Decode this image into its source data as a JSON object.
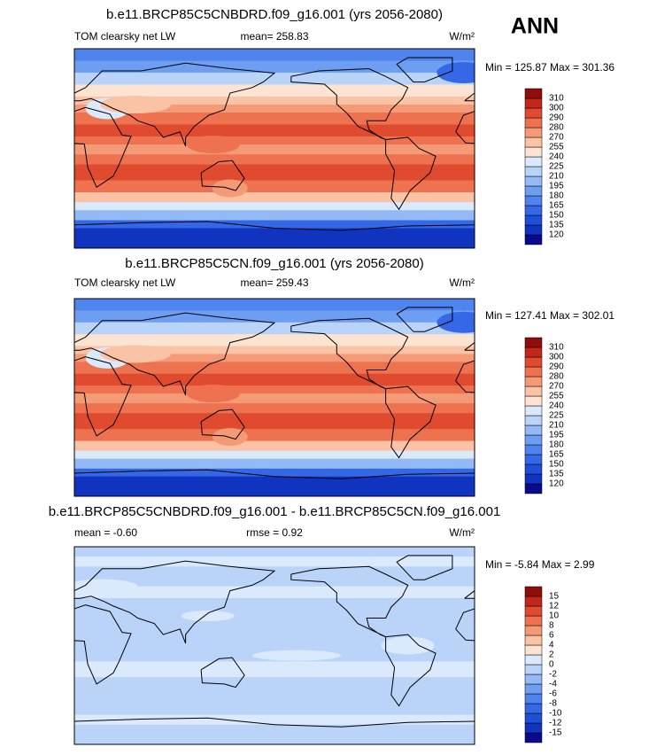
{
  "corner_label": "ANN",
  "colormap": [
    "#0b0a8c",
    "#1033c0",
    "#1d4fd8",
    "#3468e6",
    "#4f83ee",
    "#6e9ef2",
    "#93b9f6",
    "#b9d3f9",
    "#dbe9fc",
    "#fde4d2",
    "#fac3a5",
    "#f59a76",
    "#ee7150",
    "#e04a2f",
    "#c3261b",
    "#8f0d0b"
  ],
  "panels": [
    {
      "title": "b.e11.BRCP85C5CNBDRD.f09_g16.001 (yrs 2056-2080)",
      "left_label": "TOM clearsky net LW",
      "center_label": "mean= 258.83",
      "units": "W/m²",
      "minmax": "Min = 125.87 Max = 301.36",
      "levels": [
        120,
        135,
        150,
        165,
        180,
        195,
        210,
        225,
        240,
        255,
        270,
        280,
        290,
        300,
        310
      ]
    },
    {
      "title": "b.e11.BRCP85C5CN.f09_g16.001 (yrs 2056-2080)",
      "left_label": "TOM clearsky net LW",
      "center_label": "mean= 259.43",
      "units": "W/m²",
      "minmax": "Min = 127.41 Max = 302.01",
      "levels": [
        120,
        135,
        150,
        165,
        180,
        195,
        210,
        225,
        240,
        255,
        270,
        280,
        290,
        300,
        310
      ]
    },
    {
      "title": "b.e11.BRCP85C5CNBDRD.f09_g16.001 - b.e11.BRCP85C5CN.f09_g16.001",
      "left_label": "mean =  -0.60",
      "center_label": "rmse =   0.92",
      "units": "W/m²",
      "minmax": "Min =  -5.84 Max =   2.99",
      "levels": [
        -15,
        -12,
        -10,
        -8,
        -6,
        -4,
        -2,
        0,
        2,
        4,
        6,
        8,
        10,
        12,
        15
      ]
    }
  ]
}
